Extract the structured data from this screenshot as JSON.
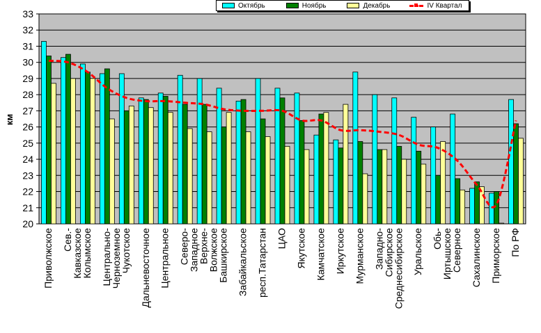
{
  "chart_data": {
    "type": "bar",
    "ylabel": "км",
    "ylim": [
      20,
      33
    ],
    "ytick_step": 1,
    "grid": true,
    "legend_position": "top",
    "plot_background": "#c0c0c0",
    "categories": [
      "Приволжское",
      "Сев.-Кавказское",
      "Колымское",
      "Центрально-Черноземное",
      "Чукотское",
      "Дальневосточное",
      "Центральное",
      "Северо-Западное",
      "Верхне-Волжское",
      "Башкирское",
      "Забайкальское",
      "респ.Татарстан",
      "ЦАО",
      "Якутское",
      "Камчатское",
      "Иркутское",
      "Мурманское",
      "Западно-Сибирское",
      "Среднесибирское",
      "Уральское",
      "Обь-Иртышское",
      "Северное",
      "Сахалинское",
      "Приморское",
      "По РФ"
    ],
    "category_lines": [
      [
        "Приволжское"
      ],
      [
        "Сев.-",
        "Кавказское"
      ],
      [
        "Колымское"
      ],
      [
        "Центрально-",
        "Черноземное"
      ],
      [
        "Чукотское"
      ],
      [
        "Дальневосточное"
      ],
      [
        "Центральное"
      ],
      [
        "Северо-",
        "Западное"
      ],
      [
        "Верхне-",
        "Волжское"
      ],
      [
        "Башкирское"
      ],
      [
        "Забайкальское"
      ],
      [
        "респ.Татарстан"
      ],
      [
        "ЦАО"
      ],
      [
        "Якутское"
      ],
      [
        "Камчатское"
      ],
      [
        "Иркутское"
      ],
      [
        "Мурманское"
      ],
      [
        "Западно-",
        "Сибирское"
      ],
      [
        "Среднесибирское"
      ],
      [
        "Уральское"
      ],
      [
        "Обь-",
        "Иртышское"
      ],
      [
        "Северное"
      ],
      [
        "Сахалинское"
      ],
      [
        "Приморское"
      ],
      [
        "По РФ"
      ]
    ],
    "series": [
      {
        "name": "Октябрь",
        "type": "bar",
        "color": "#00ffff",
        "values": [
          31.3,
          30.3,
          29.9,
          29.3,
          29.3,
          27.8,
          28.1,
          29.2,
          29.0,
          28.4,
          27.6,
          29.0,
          28.4,
          28.1,
          25.5,
          25.2,
          29.4,
          28.0,
          27.8,
          26.6,
          26.0,
          26.8,
          22.2,
          21.9,
          27.7
        ]
      },
      {
        "name": "Ноябрь",
        "type": "bar",
        "color": "#008000",
        "values": [
          30.4,
          30.5,
          29.4,
          29.6,
          27.0,
          27.7,
          27.9,
          27.4,
          27.4,
          26.0,
          27.7,
          26.5,
          27.8,
          26.4,
          26.8,
          24.7,
          25.1,
          24.6,
          24.8,
          24.5,
          23.0,
          22.8,
          22.6,
          22.0,
          26.2
        ]
      },
      {
        "name": "Декабрь",
        "type": "bar",
        "color": "#ffff99",
        "values": [
          28.7,
          29.0,
          29.0,
          26.5,
          27.3,
          27.2,
          26.9,
          25.9,
          25.7,
          26.9,
          25.7,
          25.4,
          24.8,
          24.6,
          26.9,
          27.4,
          23.1,
          24.6,
          24.0,
          23.7,
          25.1,
          22.1,
          22.3,
          19.9,
          25.3
        ]
      },
      {
        "name": "IV Квартал",
        "type": "line",
        "color": "#ff0000",
        "values": [
          30.1,
          30.0,
          29.4,
          28.4,
          27.8,
          27.6,
          27.6,
          27.5,
          27.4,
          27.1,
          27.0,
          27.0,
          27.0,
          26.4,
          26.4,
          25.8,
          25.8,
          25.7,
          25.5,
          24.9,
          24.7,
          23.9,
          22.4,
          21.2,
          26.4
        ]
      }
    ]
  }
}
